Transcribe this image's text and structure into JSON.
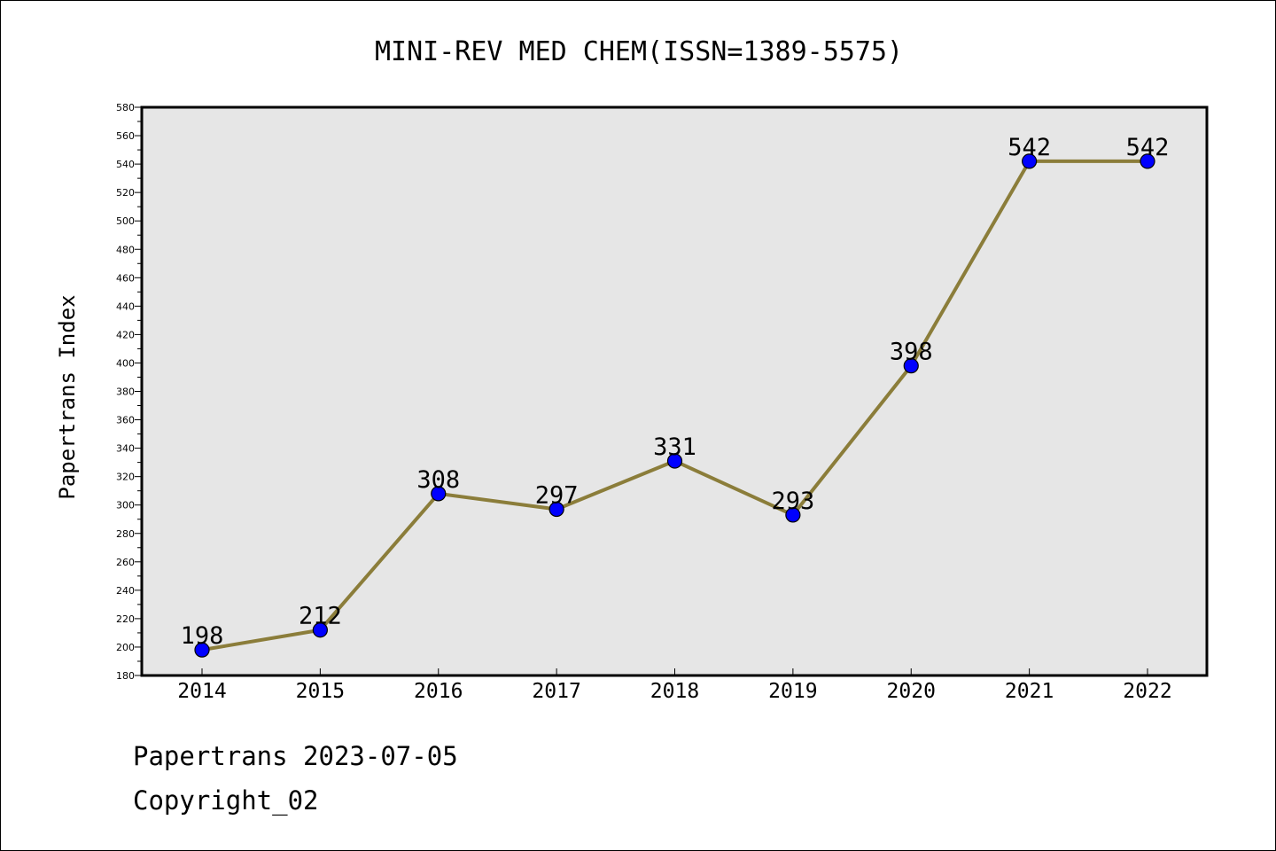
{
  "chart_data": {
    "type": "line",
    "title": "MINI-REV MED CHEM(ISSN=1389-5575)",
    "xlabel": "",
    "ylabel": "Papertrans Index",
    "categories": [
      "2014",
      "2015",
      "2016",
      "2017",
      "2018",
      "2019",
      "2020",
      "2021",
      "2022"
    ],
    "series": [
      {
        "values": [
          198,
          212,
          308,
          297,
          331,
          293,
          398,
          542,
          542
        ]
      }
    ],
    "ylim": [
      180,
      580
    ],
    "ytick_step": 20,
    "grid": false,
    "legend": "none",
    "colors": {
      "line": "#8b7d3a",
      "marker": "#0000ff",
      "plot_bg": "#e6e6e6"
    }
  },
  "footer": {
    "line1": "Papertrans 2023-07-05",
    "line2": "Copyright_02"
  }
}
